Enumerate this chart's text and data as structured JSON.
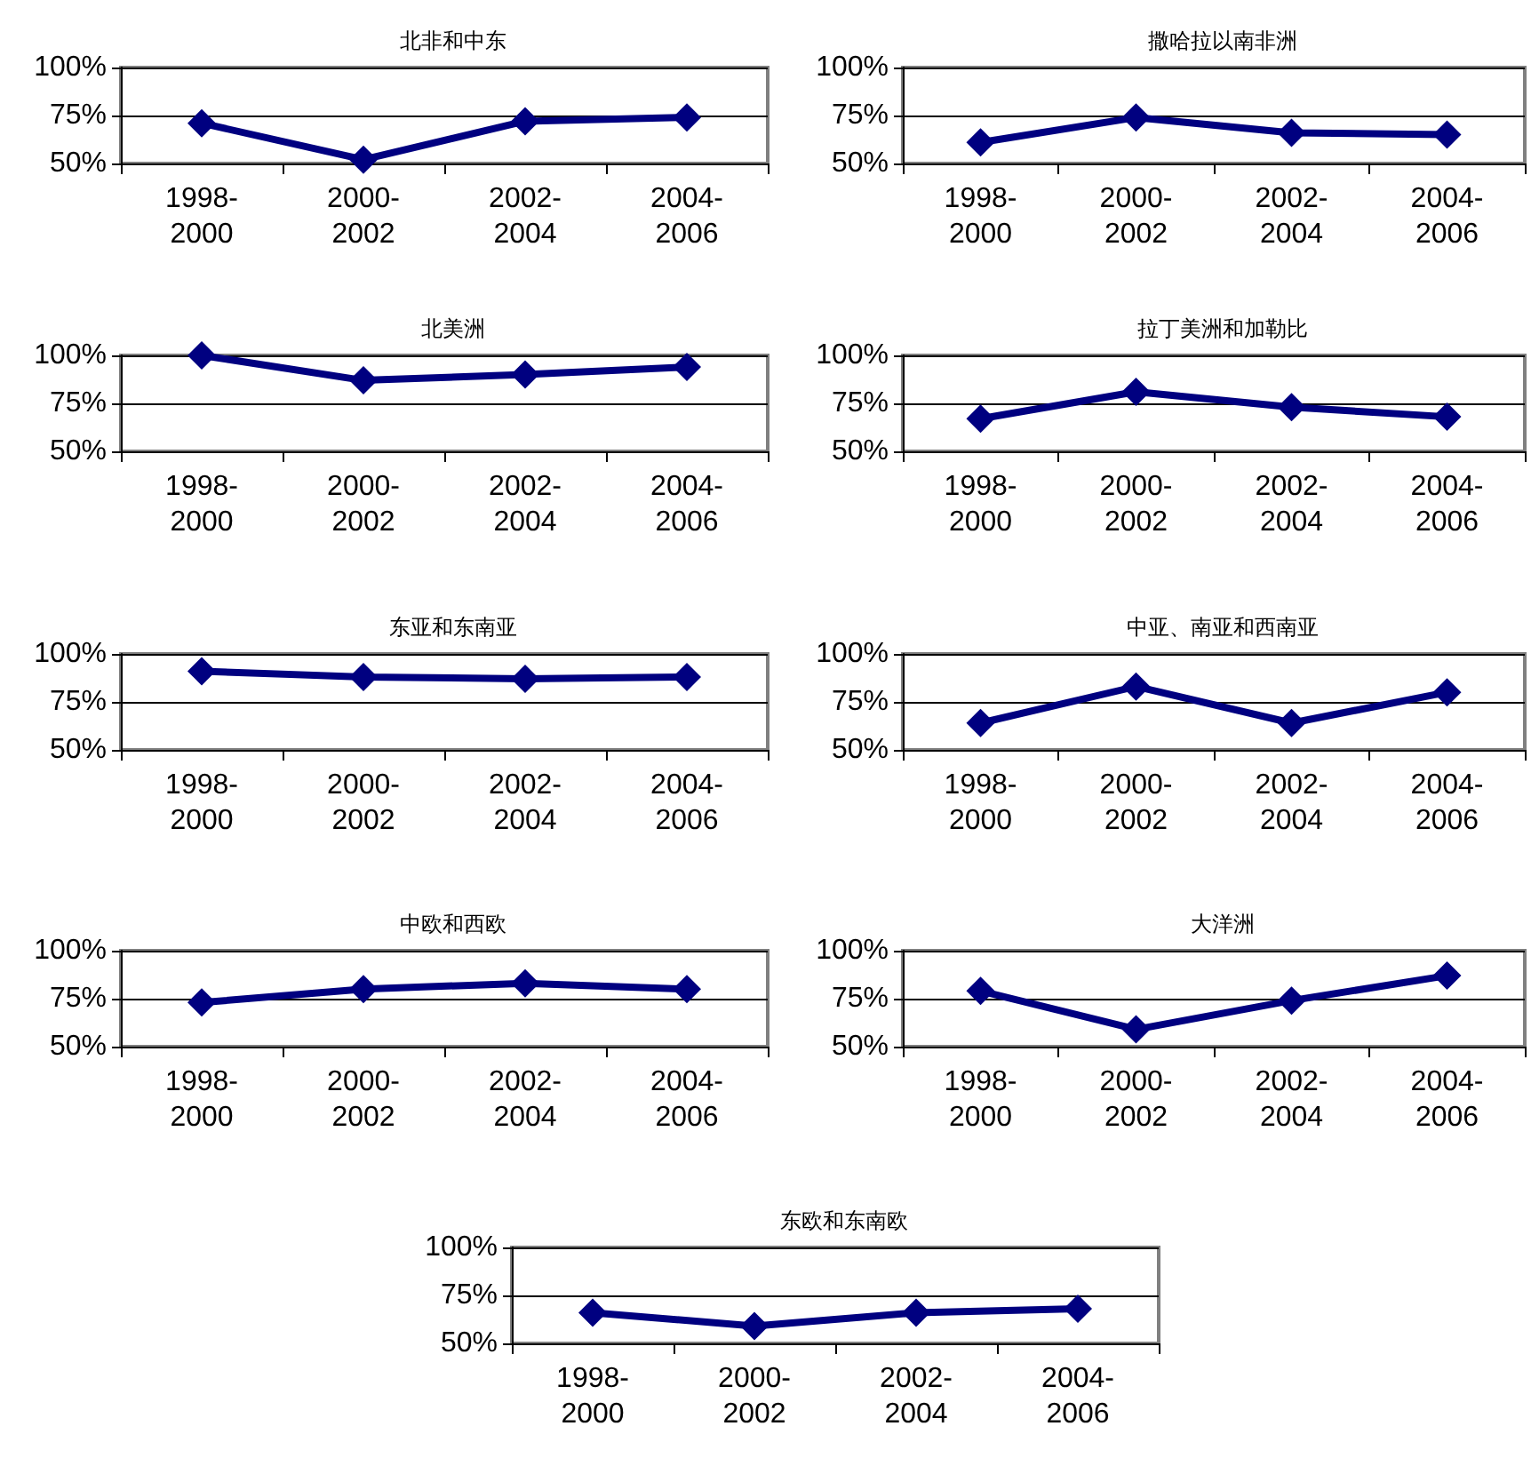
{
  "chart_data": [
    {
      "type": "line",
      "title": "北非和中东",
      "categories": [
        "1998-2000",
        "2000-2002",
        "2002-2004",
        "2004-2006"
      ],
      "series": [
        {
          "color": "#000080",
          "values": [
            71,
            52,
            72,
            74
          ]
        }
      ],
      "ylim": [
        50,
        100
      ],
      "yticks": [
        {
          "value": 50,
          "label": "50%"
        },
        {
          "value": 75,
          "label": "75%"
        },
        {
          "value": 100,
          "label": "100%"
        }
      ],
      "grid": "y",
      "marker": "diamond",
      "line_style": "solid"
    },
    {
      "type": "line",
      "title": "撒哈拉以南非洲",
      "categories": [
        "1998-2000",
        "2000-2002",
        "2002-2004",
        "2004-2006"
      ],
      "series": [
        {
          "color": "#000080",
          "values": [
            61,
            74,
            66,
            65
          ]
        }
      ],
      "ylim": [
        50,
        100
      ],
      "yticks": [
        {
          "value": 50,
          "label": "50%"
        },
        {
          "value": 75,
          "label": "75%"
        },
        {
          "value": 100,
          "label": "100%"
        }
      ],
      "grid": "y",
      "marker": "diamond",
      "line_style": "solid"
    },
    {
      "type": "line",
      "title": "北美洲",
      "categories": [
        "1998-2000",
        "2000-2002",
        "2002-2004",
        "2004-2006"
      ],
      "series": [
        {
          "color": "#000080",
          "values": [
            100,
            87,
            90,
            94
          ]
        }
      ],
      "ylim": [
        50,
        100
      ],
      "yticks": [
        {
          "value": 50,
          "label": "50%"
        },
        {
          "value": 75,
          "label": "75%"
        },
        {
          "value": 100,
          "label": "100%"
        }
      ],
      "grid": "y",
      "marker": "diamond",
      "line_style": "solid"
    },
    {
      "type": "line",
      "title": "拉丁美洲和加勒比",
      "categories": [
        "1998-2000",
        "2000-2002",
        "2002-2004",
        "2004-2006"
      ],
      "series": [
        {
          "color": "#000080",
          "values": [
            67,
            81,
            73,
            68
          ]
        }
      ],
      "ylim": [
        50,
        100
      ],
      "yticks": [
        {
          "value": 50,
          "label": "50%"
        },
        {
          "value": 75,
          "label": "75%"
        },
        {
          "value": 100,
          "label": "100%"
        }
      ],
      "grid": "y",
      "marker": "diamond",
      "line_style": "solid"
    },
    {
      "type": "line",
      "title": "东亚和东南亚",
      "categories": [
        "1998-2000",
        "2000-2002",
        "2002-2004",
        "2004-2006"
      ],
      "series": [
        {
          "color": "#000080",
          "values": [
            91,
            88,
            87,
            88
          ]
        }
      ],
      "ylim": [
        50,
        100
      ],
      "yticks": [
        {
          "value": 50,
          "label": "50%"
        },
        {
          "value": 75,
          "label": "75%"
        },
        {
          "value": 100,
          "label": "100%"
        }
      ],
      "grid": "y",
      "marker": "diamond",
      "line_style": "solid"
    },
    {
      "type": "line",
      "title": "中亚、南亚和西南亚",
      "categories": [
        "1998-2000",
        "2000-2002",
        "2002-2004",
        "2004-2006"
      ],
      "series": [
        {
          "color": "#000080",
          "values": [
            64,
            83,
            64,
            80
          ]
        }
      ],
      "ylim": [
        50,
        100
      ],
      "yticks": [
        {
          "value": 50,
          "label": "50%"
        },
        {
          "value": 75,
          "label": "75%"
        },
        {
          "value": 100,
          "label": "100%"
        }
      ],
      "grid": "y",
      "marker": "diamond",
      "line_style": "solid"
    },
    {
      "type": "line",
      "title": "中欧和西欧",
      "categories": [
        "1998-2000",
        "2000-2002",
        "2002-2004",
        "2004-2006"
      ],
      "series": [
        {
          "color": "#000080",
          "values": [
            73,
            80,
            83,
            80
          ]
        }
      ],
      "ylim": [
        50,
        100
      ],
      "yticks": [
        {
          "value": 50,
          "label": "50%"
        },
        {
          "value": 75,
          "label": "75%"
        },
        {
          "value": 100,
          "label": "100%"
        }
      ],
      "grid": "y",
      "marker": "diamond",
      "line_style": "solid"
    },
    {
      "type": "line",
      "title": "大洋洲",
      "categories": [
        "1998-2000",
        "2000-2002",
        "2002-2004",
        "2004-2006"
      ],
      "series": [
        {
          "color": "#000080",
          "values": [
            79,
            59,
            74,
            87
          ]
        }
      ],
      "ylim": [
        50,
        100
      ],
      "yticks": [
        {
          "value": 50,
          "label": "50%"
        },
        {
          "value": 75,
          "label": "75%"
        },
        {
          "value": 100,
          "label": "100%"
        }
      ],
      "grid": "y",
      "marker": "diamond",
      "line_style": "solid"
    },
    {
      "type": "line",
      "title": "东欧和东南欧",
      "categories": [
        "1998-2000",
        "2000-2002",
        "2002-2004",
        "2004-2006"
      ],
      "series": [
        {
          "color": "#000080",
          "values": [
            66,
            59,
            66,
            68
          ]
        }
      ],
      "ylim": [
        50,
        100
      ],
      "yticks": [
        {
          "value": 50,
          "label": "50%"
        },
        {
          "value": 75,
          "label": "75%"
        },
        {
          "value": 100,
          "label": "100%"
        }
      ],
      "grid": "y",
      "marker": "diamond",
      "line_style": "solid"
    }
  ]
}
